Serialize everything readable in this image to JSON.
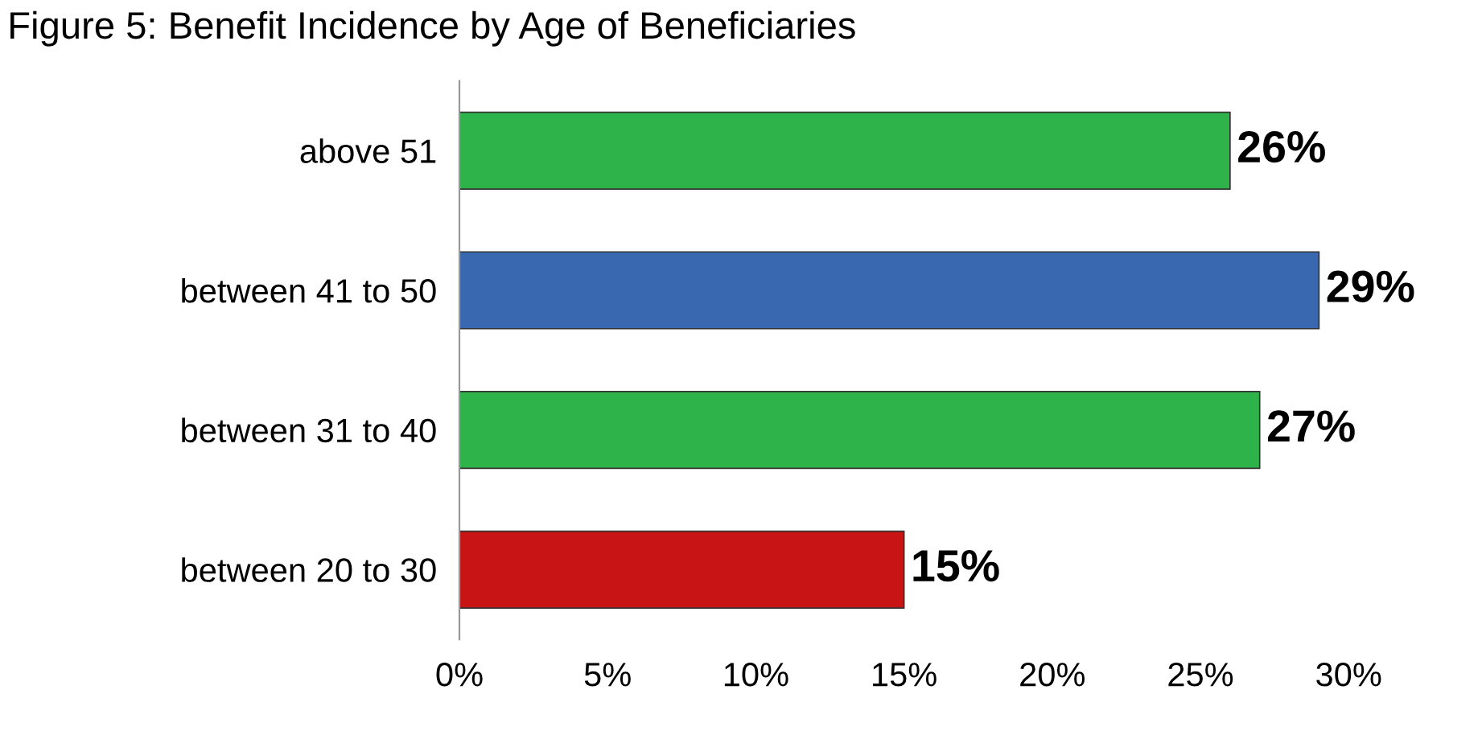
{
  "chart_data": {
    "type": "bar",
    "orientation": "horizontal",
    "title": "Figure 5: Benefit Incidence by Age of Beneficiaries",
    "categories": [
      "above 51",
      "between 41 to 50",
      "between 31 to 40",
      "between 20 to 30"
    ],
    "values": [
      26,
      29,
      27,
      15
    ],
    "value_labels": [
      "26%",
      "29%",
      "27%",
      "15%"
    ],
    "colors": [
      "#2db34a",
      "#3a68b0",
      "#2db34a",
      "#c81414"
    ],
    "xlim": [
      0,
      30
    ],
    "xticks": [
      {
        "value": 0,
        "label": "0%"
      },
      {
        "value": 5,
        "label": "5%"
      },
      {
        "value": 10,
        "label": "10%"
      },
      {
        "value": 15,
        "label": "15%"
      },
      {
        "value": 20,
        "label": "20%"
      },
      {
        "value": 25,
        "label": "25%"
      },
      {
        "value": 30,
        "label": "30%"
      }
    ],
    "grid": false,
    "legend": false
  }
}
